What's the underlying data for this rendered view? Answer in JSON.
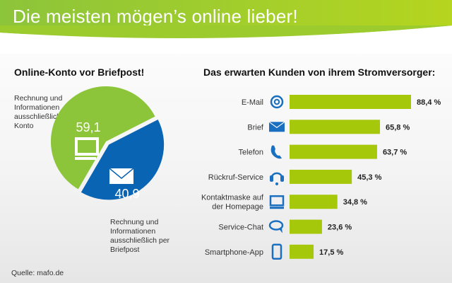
{
  "header": {
    "title": "Die meisten mögen’s online lieber!"
  },
  "source": "Quelle: mafo.de",
  "colors": {
    "green": "#8cc43a",
    "blue": "#0a64b4",
    "bar": "#a6c80a",
    "icon": "#1a6fc0"
  },
  "chart_data": [
    {
      "type": "pie",
      "title": "Online-Konto vor Briefpost!",
      "slices": [
        {
          "label": "Rechnung und Informationen ausschließlich im Online-Konto",
          "value": 59.1,
          "display": "59,1",
          "color": "#8cc43a",
          "icon": "monitor-icon"
        },
        {
          "label": "Rechnung und Informationen ausschließlich per Briefpost",
          "value": 40.9,
          "display": "40,9",
          "color": "#0a64b4",
          "icon": "envelope-icon"
        }
      ]
    },
    {
      "type": "bar",
      "orientation": "horizontal",
      "title": "Das erwarten Kunden von ihrem Stromversorger:",
      "unit": "%",
      "categories": [
        "E-Mail",
        "Brief",
        "Telefon",
        "Rückruf-Service",
        "Kontaktmaske auf der Homepage",
        "Service-Chat",
        "Smartphone-App"
      ],
      "values": [
        88.4,
        65.8,
        63.7,
        45.3,
        34.8,
        23.6,
        17.5
      ],
      "labels": [
        "88,4 %",
        "65,8 %",
        "63,7 %",
        "45,3 %",
        "34,8 %",
        "23,6 %",
        "17,5 %"
      ],
      "icons": [
        "at-icon",
        "envelope-icon",
        "phone-icon",
        "headset-icon",
        "monitor-icon",
        "chat-icon",
        "smartphone-icon"
      ]
    }
  ]
}
